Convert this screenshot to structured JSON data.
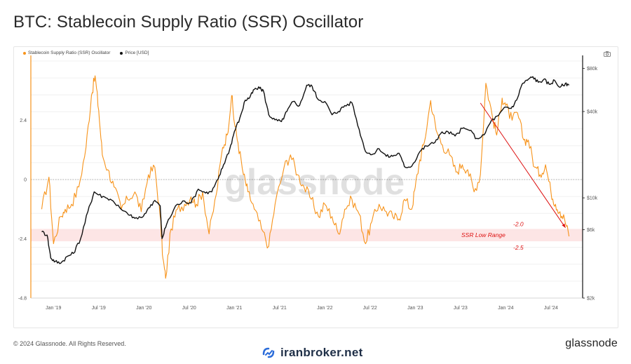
{
  "title": "BTC: Stablecoin Supply Ratio (SSR) Oscillator",
  "footer": {
    "copyright": "© 2024 Glassnode. All Rights Reserved.",
    "brand": "glassnode"
  },
  "watermark": {
    "text": "iranbroker.net",
    "center": "glassnode"
  },
  "legend": [
    {
      "label": "Stablecoin Supply Ratio (SSR) Oscillator",
      "color": "#f7931a"
    },
    {
      "label": "Price [USD]",
      "color": "#111111"
    }
  ],
  "icons": {
    "camera": "camera-icon",
    "watermark": "iranbroker-logo-icon"
  },
  "chart_data": {
    "type": "line",
    "x_ticks": [
      "Jan '19",
      "Jul '19",
      "Jan '20",
      "Jul '20",
      "Jan '21",
      "Jul '21",
      "Jan '22",
      "Jul '22",
      "Jan '23",
      "Jul '23",
      "Jan '24",
      "Jul '24"
    ],
    "y_left_ticks": [
      "2.4",
      "0",
      "-2.4",
      "-4.8"
    ],
    "y_left_range": [
      -4.8,
      4.8
    ],
    "y_right_ticks": [
      "$80k",
      "$40k",
      "$10k",
      "$6k",
      "$2k"
    ],
    "y_right_scale": "log",
    "y_right_range": [
      2000,
      90000
    ],
    "low_range_band": {
      "label": "SSR Low Range",
      "upper": -2.0,
      "lower": -2.5,
      "upper_label": "-2.0",
      "lower_label": "-2.5"
    },
    "series": [
      {
        "name": "Stablecoin Supply Ratio (SSR) Oscillator",
        "axis": "left",
        "color": "#f7931a",
        "x": [
          2018.87,
          2018.95,
          2019.0,
          2019.08,
          2019.13,
          2019.2,
          2019.28,
          2019.36,
          2019.42,
          2019.46,
          2019.5,
          2019.54,
          2019.6,
          2019.67,
          2019.75,
          2019.82,
          2019.9,
          2019.97,
          2020.05,
          2020.12,
          2020.18,
          2020.21,
          2020.24,
          2020.3,
          2020.37,
          2020.45,
          2020.52,
          2020.58,
          2020.65,
          2020.72,
          2020.8,
          2020.87,
          2020.92,
          2020.97,
          2021.0,
          2021.04,
          2021.1,
          2021.15,
          2021.22,
          2021.3,
          2021.38,
          2021.45,
          2021.55,
          2021.62,
          2021.7,
          2021.77,
          2021.85,
          2021.93,
          2022.0,
          2022.08,
          2022.15,
          2022.22,
          2022.3,
          2022.38,
          2022.45,
          2022.52,
          2022.6,
          2022.68,
          2022.75,
          2022.82,
          2022.88,
          2022.96,
          2023.0,
          2023.05,
          2023.1,
          2023.17,
          2023.23,
          2023.3,
          2023.38,
          2023.45,
          2023.52,
          2023.58,
          2023.65,
          2023.72,
          2023.78,
          2023.85,
          2023.9,
          2023.96,
          2024.0,
          2024.07,
          2024.13,
          2024.2,
          2024.25,
          2024.32,
          2024.38,
          2024.44,
          2024.5,
          2024.55,
          2024.6,
          2024.65,
          2024.7
        ],
        "y": [
          -1.2,
          0.1,
          -2.6,
          -1.5,
          -1.2,
          -1.0,
          -0.3,
          1.3,
          3.4,
          4.2,
          2.8,
          1.0,
          0.4,
          -0.3,
          -1.2,
          -0.8,
          -0.5,
          -1.3,
          0.2,
          0.5,
          -1.5,
          -3.2,
          -4.0,
          -2.0,
          -1.2,
          -1.0,
          -0.7,
          -1.0,
          -0.5,
          -2.2,
          -0.6,
          1.3,
          1.8,
          3.4,
          2.3,
          1.5,
          0.2,
          -0.5,
          -1.2,
          -2.0,
          -2.7,
          -1.0,
          0.5,
          1.0,
          0.2,
          -0.3,
          -0.8,
          -1.5,
          -1.0,
          -1.5,
          -2.2,
          -1.2,
          -0.8,
          -1.4,
          -2.6,
          -1.7,
          -1.0,
          -1.3,
          -1.5,
          -1.6,
          -0.8,
          -1.2,
          -0.3,
          0.8,
          1.5,
          3.2,
          2.0,
          1.4,
          1.0,
          0.3,
          0.6,
          0.4,
          -0.5,
          0.2,
          3.9,
          2.6,
          1.8,
          3.3,
          3.0,
          2.4,
          2.7,
          1.6,
          1.6,
          0.5,
          0.2,
          0.6,
          -0.5,
          -1.0,
          -1.3,
          -1.6,
          -2.3
        ]
      },
      {
        "name": "Price [USD]",
        "axis": "right",
        "color": "#111111",
        "x": [
          2018.87,
          2018.93,
          2018.97,
          2019.02,
          2019.08,
          2019.15,
          2019.22,
          2019.3,
          2019.38,
          2019.45,
          2019.5,
          2019.58,
          2019.66,
          2019.75,
          2019.83,
          2019.9,
          2019.98,
          2020.05,
          2020.12,
          2020.18,
          2020.2,
          2020.25,
          2020.35,
          2020.45,
          2020.52,
          2020.6,
          2020.68,
          2020.75,
          2020.82,
          2020.88,
          2020.95,
          2021.0,
          2021.06,
          2021.12,
          2021.17,
          2021.22,
          2021.28,
          2021.32,
          2021.38,
          2021.45,
          2021.52,
          2021.58,
          2021.65,
          2021.72,
          2021.8,
          2021.86,
          2021.92,
          2022.0,
          2022.08,
          2022.15,
          2022.22,
          2022.3,
          2022.38,
          2022.45,
          2022.52,
          2022.6,
          2022.68,
          2022.75,
          2022.82,
          2022.88,
          2022.96,
          2023.05,
          2023.12,
          2023.2,
          2023.28,
          2023.36,
          2023.44,
          2023.52,
          2023.6,
          2023.68,
          2023.76,
          2023.84,
          2023.92,
          2024.0,
          2024.06,
          2024.12,
          2024.18,
          2024.24,
          2024.3,
          2024.36,
          2024.42,
          2024.48,
          2024.54,
          2024.6,
          2024.66,
          2024.7
        ],
        "y": [
          5800,
          5500,
          3800,
          3600,
          3500,
          3900,
          4100,
          5200,
          8000,
          11000,
          10500,
          10000,
          9500,
          8300,
          7600,
          7200,
          7300,
          8500,
          9600,
          8800,
          5200,
          6500,
          8800,
          9500,
          9200,
          11500,
          10800,
          11000,
          13500,
          17000,
          22000,
          29000,
          36000,
          48000,
          50000,
          57000,
          58000,
          56000,
          38000,
          35000,
          34000,
          40000,
          47000,
          44000,
          61000,
          60000,
          49000,
          47000,
          38000,
          40000,
          44000,
          46000,
          30000,
          21000,
          20000,
          22000,
          19500,
          19500,
          20500,
          16500,
          16600,
          21000,
          23000,
          24000,
          28000,
          29000,
          27000,
          30500,
          29500,
          26000,
          27500,
          34500,
          37500,
          43000,
          42000,
          48000,
          62000,
          66000,
          70000,
          64000,
          67000,
          62000,
          66000,
          59000,
          63000,
          61000
        ]
      }
    ]
  }
}
